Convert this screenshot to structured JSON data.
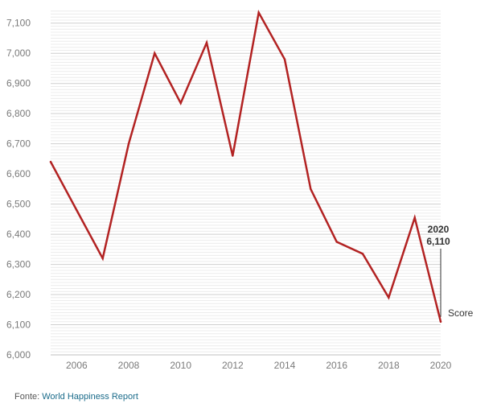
{
  "chart_data": {
    "type": "line",
    "x": [
      2005,
      2006,
      2007,
      2008,
      2009,
      2010,
      2011,
      2012,
      2013,
      2014,
      2015,
      2016,
      2017,
      2018,
      2019,
      2020
    ],
    "series": [
      {
        "name": "Score",
        "values": [
          6640,
          6480,
          6320,
          6700,
          7000,
          6835,
          7035,
          6660,
          7135,
          6980,
          6550,
          6375,
          6335,
          6190,
          6455,
          6110
        ],
        "color": "#b22222"
      }
    ],
    "xticks": [
      "2006",
      "2008",
      "2010",
      "2012",
      "2014",
      "2016",
      "2018",
      "2020"
    ],
    "yticks": [
      "6,000",
      "6,100",
      "6,200",
      "6,300",
      "6,400",
      "6,500",
      "6,600",
      "6,700",
      "6,800",
      "6,900",
      "7,000",
      "7,100"
    ],
    "xlim": [
      2005,
      2020
    ],
    "ylim": [
      6000,
      7150
    ],
    "grid": true,
    "annotation": {
      "x": 2020,
      "year": "2020",
      "value": "6,110"
    }
  },
  "source": {
    "prefix": "Fonte:",
    "link": "World Happiness Report"
  }
}
